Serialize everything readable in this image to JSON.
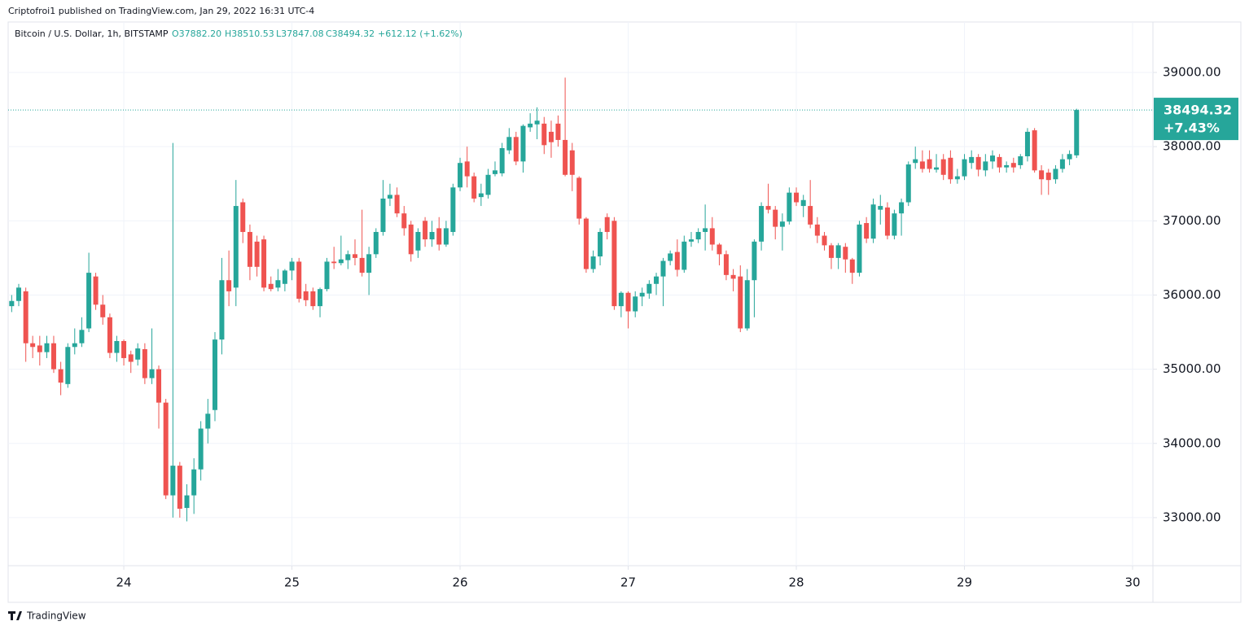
{
  "attribution": "Criptofroi1 published on TradingView.com, Jan 29, 2022 16:31 UTC-4",
  "logo": "TradingView",
  "chart_data": {
    "type": "candlestick",
    "legend": {
      "symbol": "Bitcoin / U.S. Dollar, 1h, BITSTAMP",
      "open": {
        "value": 37882.2,
        "label": "O37882.20"
      },
      "high": {
        "value": 38510.53,
        "label": "H38510.53"
      },
      "low": {
        "value": 37847.08,
        "label": "L37847.08"
      },
      "close": {
        "value": 38494.32,
        "label": "C38494.32"
      },
      "change": {
        "value": 612.12,
        "label": "+612.12 (+1.62%)"
      }
    },
    "last_price": {
      "value": 38494.32,
      "label": "38494.32"
    },
    "last_change_pct": {
      "value": 7.43,
      "label": "+7.43%"
    },
    "up_color": "#26a69a",
    "down_color": "#ef5350",
    "grid": true,
    "xlim": [
      23.312,
      30.121
    ],
    "xticks": [
      24,
      25,
      26,
      27,
      28,
      29,
      30
    ],
    "ylim": [
      32352,
      39680
    ],
    "yticks": [
      {
        "value": 33000,
        "label": "33000.00"
      },
      {
        "value": 34000,
        "label": "34000.00"
      },
      {
        "value": 35000,
        "label": "35000.00"
      },
      {
        "value": 36000,
        "label": "36000.00"
      },
      {
        "value": 37000,
        "label": "37000.00"
      },
      {
        "value": 38000,
        "label": "38000.00"
      },
      {
        "value": 39000,
        "label": "39000.00"
      }
    ],
    "x": [
      23.333,
      23.375,
      23.417,
      23.458,
      23.5,
      23.542,
      23.583,
      23.625,
      23.667,
      23.708,
      23.75,
      23.792,
      23.833,
      23.875,
      23.917,
      23.958,
      24,
      24.042,
      24.083,
      24.125,
      24.167,
      24.208,
      24.25,
      24.292,
      24.333,
      24.375,
      24.417,
      24.458,
      24.5,
      24.542,
      24.583,
      24.625,
      24.667,
      24.708,
      24.75,
      24.792,
      24.833,
      24.875,
      24.917,
      24.958,
      25,
      25.042,
      25.083,
      25.125,
      25.167,
      25.208,
      25.25,
      25.292,
      25.333,
      25.375,
      25.417,
      25.458,
      25.5,
      25.542,
      25.583,
      25.625,
      25.667,
      25.708,
      25.75,
      25.792,
      25.833,
      25.875,
      25.917,
      25.958,
      26,
      26.042,
      26.083,
      26.125,
      26.167,
      26.208,
      26.25,
      26.292,
      26.333,
      26.375,
      26.417,
      26.458,
      26.5,
      26.542,
      26.583,
      26.625,
      26.667,
      26.708,
      26.75,
      26.792,
      26.833,
      26.875,
      26.917,
      26.958,
      27,
      27.042,
      27.083,
      27.125,
      27.167,
      27.208,
      27.25,
      27.292,
      27.333,
      27.375,
      27.417,
      27.458,
      27.5,
      27.542,
      27.583,
      27.625,
      27.667,
      27.708,
      27.75,
      27.792,
      27.833,
      27.875,
      27.917,
      27.958,
      28,
      28.042,
      28.083,
      28.125,
      28.167,
      28.208,
      28.25,
      28.292,
      28.333,
      28.375,
      28.417,
      28.458,
      28.5,
      28.542,
      28.583,
      28.625,
      28.667,
      28.708,
      28.75,
      28.792,
      28.833,
      28.875,
      28.917,
      28.958,
      29,
      29.042,
      29.083,
      29.125,
      29.167,
      29.208,
      29.25,
      29.292,
      29.333,
      29.375,
      29.417,
      29.458,
      29.5,
      29.542,
      29.583,
      29.625,
      29.667
    ],
    "open": [
      35850,
      35920,
      36050,
      35350,
      35320,
      35230,
      35350,
      35000,
      34800,
      35300,
      35350,
      35550,
      36250,
      35870,
      35700,
      35220,
      35380,
      35200,
      35130,
      35270,
      34880,
      35000,
      34550,
      33300,
      33700,
      33130,
      33300,
      33650,
      34200,
      34450,
      35400,
      36200,
      36100,
      37250,
      36850,
      36720,
      36750,
      36150,
      36100,
      36150,
      36330,
      36450,
      36050,
      36050,
      35850,
      36080,
      36450,
      36430,
      36470,
      36550,
      36500,
      36300,
      36550,
      36850,
      37300,
      37350,
      37100,
      36950,
      36600,
      37000,
      36750,
      36900,
      36680,
      36850,
      37450,
      37800,
      37600,
      37320,
      37350,
      37630,
      37640,
      37950,
      38130,
      37800,
      38260,
      38300,
      38310,
      38200,
      38310,
      38090,
      37950,
      37580,
      37030,
      36350,
      36520,
      37050,
      37000,
      35850,
      36030,
      35780,
      35980,
      36020,
      36150,
      36250,
      36460,
      36580,
      36340,
      36720,
      36750,
      36850,
      36900,
      36680,
      36550,
      36270,
      36250,
      35550,
      36200,
      36720,
      37200,
      37150,
      36920,
      36990,
      37380,
      37200,
      37200,
      36950,
      36800,
      36670,
      36500,
      36650,
      36480,
      36300,
      36970,
      36760,
      37150,
      37180,
      36800,
      37100,
      37250,
      37780,
      37800,
      37830,
      37690,
      37830,
      37850,
      37560,
      37600,
      37780,
      37860,
      37680,
      37800,
      37860,
      37720,
      37780,
      37750,
      37870,
      38220,
      37680,
      37650,
      37560,
      37700,
      37830,
      37882.2
    ],
    "high": [
      36000,
      36150,
      36100,
      35450,
      35450,
      35450,
      35450,
      35100,
      35350,
      35550,
      35700,
      36570,
      36300,
      36000,
      35750,
      35450,
      35400,
      35250,
      35350,
      35350,
      35550,
      35050,
      34600,
      38050,
      33750,
      33450,
      33800,
      34300,
      34600,
      35500,
      36500,
      36600,
      37550,
      37300,
      36950,
      36800,
      36800,
      36250,
      36350,
      36350,
      36500,
      36500,
      36150,
      36100,
      36100,
      36500,
      36650,
      36800,
      36600,
      36750,
      37150,
      36650,
      36900,
      37550,
      37500,
      37450,
      37200,
      37000,
      36900,
      37050,
      37000,
      37050,
      37000,
      37500,
      37850,
      38000,
      37650,
      37500,
      37700,
      37800,
      38050,
      38250,
      38200,
      38300,
      38450,
      38530,
      38400,
      38350,
      38420,
      38930,
      38050,
      37600,
      37050,
      36600,
      36900,
      37100,
      37050,
      36050,
      36050,
      36050,
      36100,
      36200,
      36300,
      36500,
      36600,
      36750,
      36800,
      36850,
      36900,
      37220,
      37050,
      36700,
      36600,
      36350,
      36400,
      36350,
      36750,
      37250,
      37500,
      37200,
      37100,
      37450,
      37450,
      37350,
      37550,
      37050,
      36850,
      36700,
      36700,
      36700,
      36500,
      37000,
      37050,
      37300,
      37350,
      37250,
      37150,
      37300,
      37800,
      38000,
      37950,
      37950,
      37900,
      37900,
      37950,
      37700,
      37900,
      37950,
      37900,
      37900,
      37950,
      37900,
      37800,
      37850,
      37900,
      38250,
      38250,
      37750,
      37700,
      37750,
      37900,
      37950,
      38510.53
    ],
    "low": [
      35770,
      35850,
      35100,
      35150,
      35050,
      35150,
      34950,
      34650,
      34750,
      35200,
      35300,
      35500,
      35800,
      35600,
      35150,
      35100,
      35050,
      34950,
      35050,
      34800,
      34800,
      34200,
      33250,
      33000,
      33000,
      32950,
      33050,
      33500,
      34000,
      34300,
      35200,
      35850,
      35850,
      36700,
      36200,
      36250,
      36050,
      36050,
      36050,
      36050,
      36200,
      35900,
      35850,
      35800,
      35700,
      36050,
      36350,
      36400,
      36350,
      36400,
      36250,
      36000,
      36500,
      36800,
      37200,
      37050,
      36800,
      36450,
      36500,
      36650,
      36650,
      36600,
      36650,
      36800,
      37400,
      37450,
      37250,
      37200,
      37300,
      37600,
      37600,
      37900,
      37750,
      37650,
      38200,
      38100,
      37900,
      37850,
      38000,
      37600,
      37400,
      36950,
      36300,
      36300,
      36400,
      36750,
      35800,
      35700,
      35550,
      35700,
      35850,
      35950,
      36000,
      35850,
      36400,
      36250,
      36300,
      36650,
      36700,
      36600,
      36600,
      36400,
      36200,
      36050,
      35500,
      35520,
      35700,
      36600,
      37100,
      36750,
      36600,
      36950,
      37200,
      37050,
      36900,
      36700,
      36600,
      36350,
      36350,
      36300,
      36150,
      36250,
      36700,
      36700,
      36950,
      36750,
      36750,
      36800,
      37200,
      37700,
      37650,
      37650,
      37650,
      37550,
      37500,
      37500,
      37550,
      37700,
      37600,
      37600,
      37700,
      37650,
      37650,
      37650,
      37700,
      37800,
      37650,
      37350,
      37350,
      37500,
      37650,
      37750,
      37847.08
    ],
    "close": [
      35920,
      36100,
      35350,
      35300,
      35230,
      35350,
      35000,
      34820,
      35300,
      35350,
      35530,
      36300,
      35870,
      35700,
      35220,
      35380,
      35150,
      35100,
      35280,
      34880,
      35000,
      34550,
      33300,
      33700,
      33120,
      33300,
      33650,
      34200,
      34400,
      35400,
      36200,
      36050,
      37200,
      36850,
      36380,
      36380,
      36100,
      36080,
      36200,
      36330,
      36450,
      35950,
      35930,
      35850,
      36080,
      36450,
      36430,
      36480,
      36550,
      36500,
      36300,
      36550,
      36850,
      37300,
      37350,
      37100,
      36900,
      36550,
      36850,
      36750,
      36850,
      36680,
      36900,
      37450,
      37780,
      37600,
      37300,
      37370,
      37620,
      37680,
      37980,
      38130,
      37800,
      38280,
      38310,
      38350,
      38020,
      38060,
      38090,
      37620,
      37620,
      37030,
      36350,
      36520,
      36850,
      36850,
      35850,
      36030,
      35780,
      35980,
      36030,
      36150,
      36250,
      36460,
      36560,
      36340,
      36720,
      36750,
      36850,
      36900,
      36680,
      36550,
      36270,
      36220,
      35550,
      36200,
      36720,
      37200,
      37150,
      36920,
      36990,
      37380,
      37250,
      37280,
      36950,
      36800,
      36670,
      36500,
      36670,
      36480,
      36300,
      36950,
      36760,
      37220,
      37200,
      36800,
      37100,
      37250,
      37760,
      37830,
      37700,
      37700,
      37720,
      37620,
      37560,
      37600,
      37830,
      37860,
      37690,
      37800,
      37880,
      37720,
      37750,
      37720,
      37870,
      38200,
      37680,
      37560,
      37550,
      37700,
      37830,
      37900,
      38494.32
    ]
  }
}
